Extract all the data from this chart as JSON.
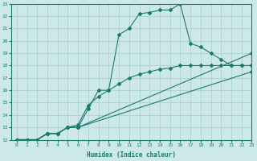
{
  "line1": {
    "x": [
      0,
      1,
      2,
      3,
      4,
      5,
      6,
      7,
      8,
      9,
      10,
      11,
      12,
      13,
      14,
      15,
      16,
      17,
      18,
      19,
      20,
      21,
      22,
      23
    ],
    "y": [
      12,
      12,
      12,
      12.5,
      12.5,
      13,
      13,
      14.5,
      16,
      16,
      20.5,
      21,
      22.2,
      22.3,
      22.5,
      22.5,
      23,
      19.8,
      19.5,
      19,
      18.5,
      18,
      18,
      18
    ]
  },
  "line2": {
    "x": [
      0,
      1,
      2,
      3,
      4,
      5,
      6,
      7,
      8,
      9,
      10,
      11,
      12,
      13,
      14,
      15,
      16,
      17,
      18,
      19,
      20,
      21,
      22,
      23
    ],
    "y": [
      12,
      12,
      12,
      12.5,
      12.5,
      13,
      13.2,
      14.8,
      15.5,
      16,
      16.5,
      17,
      17.3,
      17.5,
      17.7,
      17.8,
      18,
      18,
      18,
      18,
      18,
      18,
      18,
      18
    ]
  },
  "line3": {
    "x": [
      0,
      1,
      2,
      3,
      4,
      5,
      6,
      23
    ],
    "y": [
      12,
      12,
      12,
      12.5,
      12.5,
      13,
      13,
      19
    ]
  },
  "line4": {
    "x": [
      0,
      1,
      2,
      3,
      4,
      5,
      6,
      23
    ],
    "y": [
      12,
      12,
      12,
      12.5,
      12.5,
      13,
      13,
      17.5
    ]
  },
  "color": "#1a7a6e",
  "bg_color": "#cce8e8",
  "grid_color": "#a8cccc",
  "xlabel": "Humidex (Indice chaleur)",
  "xlim": [
    -0.5,
    23
  ],
  "ylim": [
    12,
    23
  ],
  "xticks": [
    0,
    1,
    2,
    3,
    4,
    5,
    6,
    7,
    8,
    9,
    10,
    11,
    12,
    13,
    14,
    15,
    16,
    17,
    18,
    19,
    20,
    21,
    22,
    23
  ],
  "yticks": [
    12,
    13,
    14,
    15,
    16,
    17,
    18,
    19,
    20,
    21,
    22,
    23
  ]
}
